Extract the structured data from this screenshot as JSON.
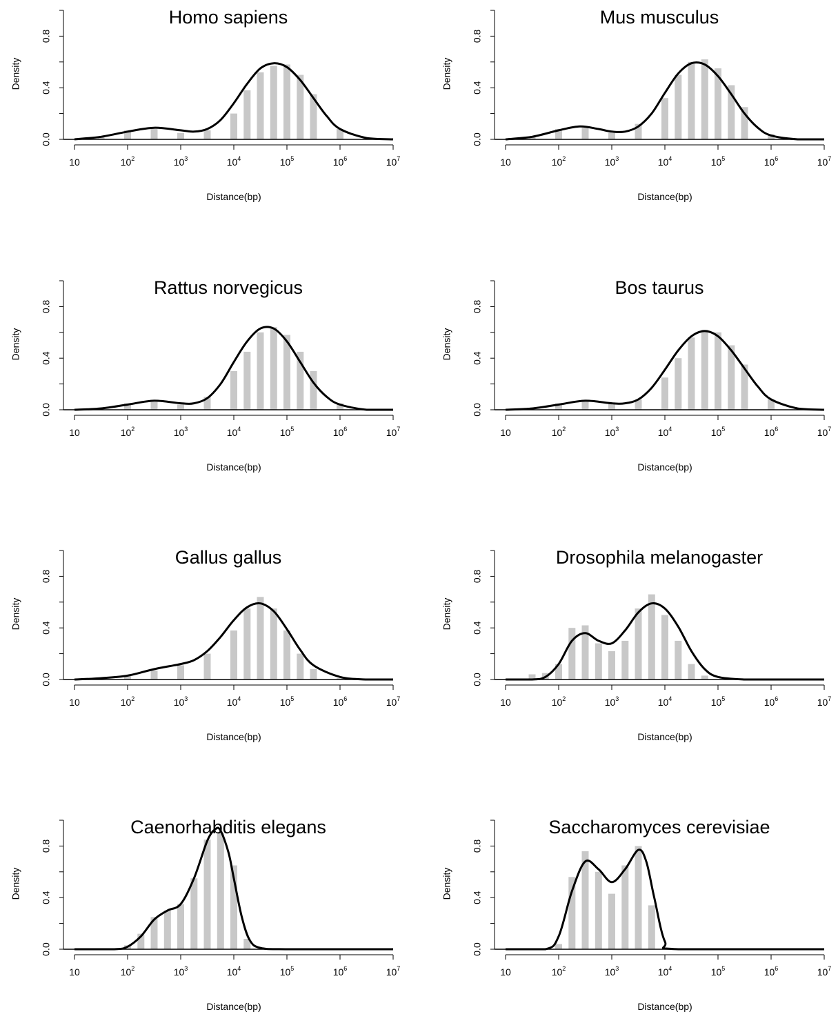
{
  "chart_data": [
    {
      "type": "bar",
      "title": "Homo sapiens",
      "xlabel": "Distance(bp)",
      "ylabel": "Density",
      "x_scale": "log10",
      "xlim": [
        1,
        7
      ],
      "ylim": [
        0,
        1.0
      ],
      "x_ticks": [
        {
          "base": "10",
          "exp": ""
        },
        {
          "base": "10",
          "exp": "2"
        },
        {
          "base": "10",
          "exp": "3"
        },
        {
          "base": "10",
          "exp": "4"
        },
        {
          "base": "10",
          "exp": "5"
        },
        {
          "base": "10",
          "exp": "6"
        },
        {
          "base": "10",
          "exp": "7"
        }
      ],
      "y_ticks": [
        "0.0",
        "0.4",
        "0.8"
      ],
      "bar_color": "#c8c8c8",
      "curve_color": "#000000",
      "histogram": {
        "x": [
          1.0,
          1.5,
          2.0,
          2.5,
          3.0,
          3.5,
          4.0,
          4.25,
          4.5,
          4.75,
          5.0,
          5.25,
          5.5,
          6.0,
          6.5
        ],
        "y": [
          0.0,
          0.02,
          0.07,
          0.08,
          0.05,
          0.07,
          0.2,
          0.38,
          0.52,
          0.57,
          0.58,
          0.5,
          0.35,
          0.08,
          0.01
        ]
      },
      "density_curve": {
        "x": [
          1.0,
          1.5,
          2.0,
          2.5,
          3.0,
          3.25,
          3.5,
          3.75,
          4.0,
          4.25,
          4.5,
          4.75,
          5.0,
          5.25,
          5.5,
          5.75,
          6.0,
          6.5,
          7.0
        ],
        "y": [
          0.0,
          0.02,
          0.06,
          0.09,
          0.07,
          0.06,
          0.08,
          0.15,
          0.28,
          0.43,
          0.55,
          0.59,
          0.56,
          0.46,
          0.32,
          0.18,
          0.08,
          0.01,
          0.0
        ]
      }
    },
    {
      "type": "bar",
      "title": "Mus musculus",
      "xlabel": "Distance(bp)",
      "ylabel": "Density",
      "x_scale": "log10",
      "xlim": [
        1,
        7
      ],
      "ylim": [
        0,
        1.0
      ],
      "x_ticks": [
        {
          "base": "10",
          "exp": ""
        },
        {
          "base": "10",
          "exp": "2"
        },
        {
          "base": "10",
          "exp": "3"
        },
        {
          "base": "10",
          "exp": "4"
        },
        {
          "base": "10",
          "exp": "5"
        },
        {
          "base": "10",
          "exp": "6"
        },
        {
          "base": "10",
          "exp": "7"
        }
      ],
      "y_ticks": [
        "0.0",
        "0.4",
        "0.8"
      ],
      "bar_color": "#c8c8c8",
      "curve_color": "#000000",
      "histogram": {
        "x": [
          1.0,
          1.5,
          2.0,
          2.5,
          3.0,
          3.5,
          4.0,
          4.25,
          4.5,
          4.75,
          5.0,
          5.25,
          5.5,
          6.0,
          6.5
        ],
        "y": [
          0.0,
          0.02,
          0.08,
          0.09,
          0.05,
          0.12,
          0.32,
          0.5,
          0.6,
          0.62,
          0.55,
          0.42,
          0.25,
          0.04,
          0.0
        ]
      },
      "density_curve": {
        "x": [
          1.0,
          1.5,
          2.0,
          2.4,
          2.75,
          3.0,
          3.25,
          3.5,
          3.75,
          4.0,
          4.25,
          4.5,
          4.75,
          5.0,
          5.25,
          5.5,
          5.75,
          6.0,
          6.5,
          7.0
        ],
        "y": [
          0.0,
          0.02,
          0.07,
          0.1,
          0.08,
          0.06,
          0.06,
          0.1,
          0.2,
          0.36,
          0.51,
          0.59,
          0.58,
          0.49,
          0.35,
          0.2,
          0.09,
          0.03,
          0.0,
          0.0
        ]
      }
    },
    {
      "type": "bar",
      "title": "Rattus norvegicus",
      "xlabel": "Distance(bp)",
      "ylabel": "Density",
      "x_scale": "log10",
      "xlim": [
        1,
        7
      ],
      "ylim": [
        0,
        1.0
      ],
      "x_ticks": [
        {
          "base": "10",
          "exp": ""
        },
        {
          "base": "10",
          "exp": "2"
        },
        {
          "base": "10",
          "exp": "3"
        },
        {
          "base": "10",
          "exp": "4"
        },
        {
          "base": "10",
          "exp": "5"
        },
        {
          "base": "10",
          "exp": "6"
        },
        {
          "base": "10",
          "exp": "7"
        }
      ],
      "y_ticks": [
        "0.0",
        "0.4",
        "0.8"
      ],
      "bar_color": "#c8c8c8",
      "curve_color": "#000000",
      "histogram": {
        "x": [
          1.0,
          1.5,
          2.0,
          2.5,
          3.0,
          3.5,
          4.0,
          4.25,
          4.5,
          4.75,
          5.0,
          5.25,
          5.5,
          6.0,
          6.5
        ],
        "y": [
          0.0,
          0.02,
          0.05,
          0.06,
          0.04,
          0.1,
          0.3,
          0.45,
          0.6,
          0.64,
          0.58,
          0.45,
          0.3,
          0.05,
          0.0
        ]
      },
      "density_curve": {
        "x": [
          1.0,
          1.5,
          2.0,
          2.5,
          3.0,
          3.25,
          3.5,
          3.75,
          4.0,
          4.25,
          4.5,
          4.75,
          5.0,
          5.25,
          5.5,
          5.75,
          6.0,
          6.5,
          7.0
        ],
        "y": [
          0.0,
          0.01,
          0.04,
          0.07,
          0.05,
          0.05,
          0.09,
          0.2,
          0.37,
          0.53,
          0.63,
          0.63,
          0.53,
          0.37,
          0.21,
          0.1,
          0.04,
          0.0,
          0.0
        ]
      }
    },
    {
      "type": "bar",
      "title": "Bos taurus",
      "xlabel": "Distance(bp)",
      "ylabel": "Density",
      "x_scale": "log10",
      "xlim": [
        1,
        7
      ],
      "ylim": [
        0,
        1.0
      ],
      "x_ticks": [
        {
          "base": "10",
          "exp": ""
        },
        {
          "base": "10",
          "exp": "2"
        },
        {
          "base": "10",
          "exp": "3"
        },
        {
          "base": "10",
          "exp": "4"
        },
        {
          "base": "10",
          "exp": "5"
        },
        {
          "base": "10",
          "exp": "6"
        },
        {
          "base": "10",
          "exp": "7"
        }
      ],
      "y_ticks": [
        "0.0",
        "0.4",
        "0.8"
      ],
      "bar_color": "#c8c8c8",
      "curve_color": "#000000",
      "histogram": {
        "x": [
          1.0,
          1.5,
          2.0,
          2.5,
          3.0,
          3.5,
          4.0,
          4.25,
          4.5,
          4.75,
          5.0,
          5.25,
          5.5,
          6.0,
          6.5
        ],
        "y": [
          0.0,
          0.01,
          0.05,
          0.07,
          0.05,
          0.08,
          0.25,
          0.4,
          0.56,
          0.62,
          0.6,
          0.5,
          0.35,
          0.08,
          0.01
        ]
      },
      "density_curve": {
        "x": [
          1.0,
          1.5,
          2.0,
          2.5,
          3.0,
          3.25,
          3.5,
          3.75,
          4.0,
          4.25,
          4.5,
          4.75,
          5.0,
          5.25,
          5.5,
          5.75,
          6.0,
          6.5,
          7.0
        ],
        "y": [
          0.0,
          0.01,
          0.04,
          0.07,
          0.05,
          0.05,
          0.08,
          0.17,
          0.31,
          0.46,
          0.57,
          0.61,
          0.57,
          0.46,
          0.32,
          0.18,
          0.08,
          0.01,
          0.0
        ]
      }
    },
    {
      "type": "bar",
      "title": "Gallus gallus",
      "xlabel": "Distance(bp)",
      "ylabel": "Density",
      "x_scale": "log10",
      "xlim": [
        1,
        7
      ],
      "ylim": [
        0,
        1.0
      ],
      "x_ticks": [
        {
          "base": "10",
          "exp": ""
        },
        {
          "base": "10",
          "exp": "2"
        },
        {
          "base": "10",
          "exp": "3"
        },
        {
          "base": "10",
          "exp": "4"
        },
        {
          "base": "10",
          "exp": "5"
        },
        {
          "base": "10",
          "exp": "6"
        },
        {
          "base": "10",
          "exp": "7"
        }
      ],
      "y_ticks": [
        "0.0",
        "0.4",
        "0.8"
      ],
      "bar_color": "#c8c8c8",
      "curve_color": "#000000",
      "histogram": {
        "x": [
          1.0,
          1.5,
          2.0,
          2.5,
          3.0,
          3.5,
          4.0,
          4.25,
          4.5,
          4.75,
          5.0,
          5.25,
          5.5,
          6.0,
          6.5
        ],
        "y": [
          0.0,
          0.01,
          0.03,
          0.07,
          0.11,
          0.2,
          0.38,
          0.55,
          0.64,
          0.55,
          0.38,
          0.2,
          0.08,
          0.01,
          0.0
        ]
      },
      "density_curve": {
        "x": [
          1.0,
          1.5,
          2.0,
          2.5,
          3.0,
          3.25,
          3.5,
          3.75,
          4.0,
          4.25,
          4.5,
          4.75,
          5.0,
          5.25,
          5.5,
          6.0,
          6.5,
          7.0
        ],
        "y": [
          0.0,
          0.01,
          0.03,
          0.08,
          0.12,
          0.15,
          0.22,
          0.33,
          0.46,
          0.56,
          0.59,
          0.53,
          0.39,
          0.23,
          0.11,
          0.02,
          0.0,
          0.0
        ]
      }
    },
    {
      "type": "bar",
      "title": "Drosophila melanogaster",
      "xlabel": "Distance(bp)",
      "ylabel": "Density",
      "x_scale": "log10",
      "xlim": [
        1,
        7
      ],
      "ylim": [
        0,
        1.0
      ],
      "x_ticks": [
        {
          "base": "10",
          "exp": ""
        },
        {
          "base": "10",
          "exp": "2"
        },
        {
          "base": "10",
          "exp": "3"
        },
        {
          "base": "10",
          "exp": "4"
        },
        {
          "base": "10",
          "exp": "5"
        },
        {
          "base": "10",
          "exp": "6"
        },
        {
          "base": "10",
          "exp": "7"
        }
      ],
      "y_ticks": [
        "0.0",
        "0.4",
        "0.8"
      ],
      "bar_color": "#c8c8c8",
      "curve_color": "#000000",
      "histogram": {
        "x": [
          1.5,
          1.75,
          2.0,
          2.25,
          2.5,
          2.75,
          3.0,
          3.25,
          3.5,
          3.75,
          4.0,
          4.25,
          4.5,
          4.75
        ],
        "y": [
          0.04,
          0.05,
          0.12,
          0.4,
          0.42,
          0.28,
          0.22,
          0.3,
          0.55,
          0.66,
          0.5,
          0.3,
          0.12,
          0.03
        ]
      },
      "density_curve": {
        "x": [
          1.0,
          1.5,
          1.75,
          2.0,
          2.25,
          2.5,
          2.75,
          3.0,
          3.25,
          3.5,
          3.75,
          4.0,
          4.25,
          4.5,
          4.75,
          5.0,
          5.5,
          6.0,
          7.0
        ],
        "y": [
          0.0,
          0.0,
          0.02,
          0.12,
          0.3,
          0.36,
          0.3,
          0.28,
          0.38,
          0.52,
          0.59,
          0.55,
          0.41,
          0.22,
          0.08,
          0.02,
          0.0,
          0.0,
          0.0
        ]
      }
    },
    {
      "type": "bar",
      "title": "Caenorhabditis elegans",
      "xlabel": "Distance(bp)",
      "ylabel": "Density",
      "x_scale": "log10",
      "xlim": [
        1,
        7
      ],
      "ylim": [
        0,
        1.0
      ],
      "x_ticks": [
        {
          "base": "10",
          "exp": ""
        },
        {
          "base": "10",
          "exp": "2"
        },
        {
          "base": "10",
          "exp": "3"
        },
        {
          "base": "10",
          "exp": "4"
        },
        {
          "base": "10",
          "exp": "5"
        },
        {
          "base": "10",
          "exp": "6"
        },
        {
          "base": "10",
          "exp": "7"
        }
      ],
      "y_ticks": [
        "0.0",
        "0.4",
        "0.8"
      ],
      "bar_color": "#c8c8c8",
      "curve_color": "#000000",
      "histogram": {
        "x": [
          2.0,
          2.25,
          2.5,
          2.75,
          3.0,
          3.25,
          3.5,
          3.75,
          4.0,
          4.25
        ],
        "y": [
          0.03,
          0.12,
          0.25,
          0.3,
          0.35,
          0.55,
          0.85,
          0.9,
          0.65,
          0.08
        ]
      },
      "density_curve": {
        "x": [
          1.0,
          1.75,
          2.0,
          2.25,
          2.5,
          2.75,
          3.0,
          3.25,
          3.5,
          3.65,
          3.75,
          3.9,
          4.0,
          4.15,
          4.3,
          4.5,
          5.0,
          7.0
        ],
        "y": [
          0.0,
          0.0,
          0.02,
          0.1,
          0.23,
          0.3,
          0.35,
          0.55,
          0.84,
          0.93,
          0.92,
          0.75,
          0.55,
          0.25,
          0.07,
          0.01,
          0.0,
          0.0
        ]
      }
    },
    {
      "type": "bar",
      "title": "Saccharomyces cerevisiae",
      "xlabel": "Distance(bp)",
      "ylabel": "Density",
      "x_scale": "log10",
      "xlim": [
        1,
        7
      ],
      "ylim": [
        0,
        1.0
      ],
      "x_ticks": [
        {
          "base": "10",
          "exp": ""
        },
        {
          "base": "10",
          "exp": "2"
        },
        {
          "base": "10",
          "exp": "3"
        },
        {
          "base": "10",
          "exp": "4"
        },
        {
          "base": "10",
          "exp": "5"
        },
        {
          "base": "10",
          "exp": "6"
        },
        {
          "base": "10",
          "exp": "7"
        }
      ],
      "y_ticks": [
        "0.0",
        "0.4",
        "0.8"
      ],
      "bar_color": "#c8c8c8",
      "curve_color": "#000000",
      "histogram": {
        "x": [
          2.0,
          2.25,
          2.5,
          2.75,
          3.0,
          3.25,
          3.5,
          3.75
        ],
        "y": [
          0.04,
          0.56,
          0.76,
          0.6,
          0.43,
          0.65,
          0.8,
          0.34
        ]
      },
      "density_curve": {
        "x": [
          1.0,
          1.75,
          2.0,
          2.25,
          2.5,
          2.75,
          3.0,
          3.25,
          3.5,
          3.65,
          3.8,
          4.0,
          4.25,
          7.0
        ],
        "y": [
          0.0,
          0.0,
          0.1,
          0.45,
          0.68,
          0.62,
          0.52,
          0.62,
          0.77,
          0.68,
          0.4,
          0.06,
          0.0,
          0.0
        ]
      }
    }
  ]
}
